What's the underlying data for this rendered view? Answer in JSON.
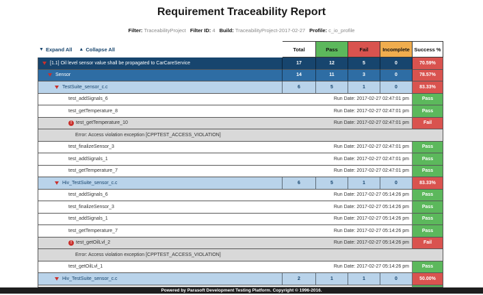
{
  "title": "Requirement Traceability Report",
  "meta": [
    {
      "label": "Filter:",
      "value": "TraceabilityProject"
    },
    {
      "label": "Filter ID:",
      "value": "4"
    },
    {
      "label": "Build:",
      "value": "TraceabilityProject-2017-02-27"
    },
    {
      "label": "Profile:",
      "value": "c_io_profile"
    }
  ],
  "toolbar": {
    "expand_all": "Expand All",
    "collapse_all": "Collapse All"
  },
  "columns": [
    {
      "label": "Total",
      "bg": "#ffffff"
    },
    {
      "label": "Pass",
      "bg": "#5cb85c"
    },
    {
      "label": "Fail",
      "bg": "#d9534f"
    },
    {
      "label": "Incomplete",
      "bg": "#f0ad4e"
    },
    {
      "label": "Success %",
      "bg": "#ffffff"
    }
  ],
  "colors": {
    "requirement_bg": "#17456e",
    "requirement_text": "#ffffff",
    "group_bg": "#2e6da4",
    "group_text": "#ffffff",
    "suite_bg": "#b9d3ea",
    "suite_text": "#17456e",
    "test_bg": "#ffffff",
    "fail_row_bg": "#d9d9d9",
    "error_row_bg": "#d9d9d9",
    "row_text": "#333333",
    "pass_badge": "#5cb85c",
    "fail_badge": "#d9534f",
    "success_cell": "#d9534f",
    "triangle": "#c9302c"
  },
  "rows": [
    {
      "kind": "requirement",
      "label": "[1.1] Oil level sensor value shall be propagated to CarCareService",
      "counts": [
        "17",
        "12",
        "5",
        "0"
      ],
      "success": "70.59%"
    },
    {
      "kind": "group",
      "label": "Sensor",
      "counts": [
        "14",
        "11",
        "3",
        "0"
      ],
      "success": "78.57%"
    },
    {
      "kind": "suite",
      "label": "TestSuite_sensor_c.c",
      "counts": [
        "6",
        "5",
        "1",
        "0"
      ],
      "success": "83.33%"
    },
    {
      "kind": "test",
      "label": "test_addSignals_6",
      "run_date": "Run Date: 2017-02-27 02:47:01 pm",
      "status": "Pass"
    },
    {
      "kind": "test",
      "label": "test_getTemperature_8",
      "run_date": "Run Date: 2017-02-27 02:47:01 pm",
      "status": "Pass"
    },
    {
      "kind": "test",
      "label": "test_getTemperature_10",
      "run_date": "Run Date: 2017-02-27 02:47:01 pm",
      "status": "Fail",
      "error_icon": true
    },
    {
      "kind": "error",
      "label": "Error: Access violation exception [CPPTEST_ACCESS_VIOLATION]"
    },
    {
      "kind": "test",
      "label": "test_finalizeSensor_3",
      "run_date": "Run Date: 2017-02-27 02:47:01 pm",
      "status": "Pass"
    },
    {
      "kind": "test",
      "label": "test_addSignals_1",
      "run_date": "Run Date: 2017-02-27 02:47:01 pm",
      "status": "Pass"
    },
    {
      "kind": "test",
      "label": "test_getTemperature_7",
      "run_date": "Run Date: 2017-02-27 02:47:01 pm",
      "status": "Pass"
    },
    {
      "kind": "suite",
      "label": "Hiv_TestSuite_sensor_c.c",
      "counts": [
        "6",
        "5",
        "1",
        "0"
      ],
      "success": "83.33%"
    },
    {
      "kind": "test",
      "label": "test_addSignals_6",
      "run_date": "Run Date: 2017-02-27 05:14:26 pm",
      "status": "Pass"
    },
    {
      "kind": "test",
      "label": "test_finalizeSensor_3",
      "run_date": "Run Date: 2017-02-27 05:14:26 pm",
      "status": "Pass"
    },
    {
      "kind": "test",
      "label": "test_addSignals_1",
      "run_date": "Run Date: 2017-02-27 05:14:26 pm",
      "status": "Pass"
    },
    {
      "kind": "test",
      "label": "test_getTemperature_7",
      "run_date": "Run Date: 2017-02-27 05:14:26 pm",
      "status": "Pass"
    },
    {
      "kind": "test",
      "label": "test_getOilLvl_2",
      "run_date": "Run Date: 2017-02-27 05:14:26 pm",
      "status": "Fail",
      "error_icon": true
    },
    {
      "kind": "error",
      "label": "Error: Access violation exception [CPPTEST_ACCESS_VIOLATION]"
    },
    {
      "kind": "test",
      "label": "test_getOilLvl_1",
      "run_date": "Run Date: 2017-02-27 05:14:26 pm",
      "status": "Pass"
    },
    {
      "kind": "suite",
      "label": "Hiv_TestSuite_sensor_c.c",
      "counts": [
        "2",
        "1",
        "1",
        "0"
      ],
      "success": "50.00%"
    },
    {
      "kind": "partial",
      "status": "Pass"
    }
  ],
  "footer": "Powered by Parasoft Development Testing Platform. Copyright © 1996-2016."
}
